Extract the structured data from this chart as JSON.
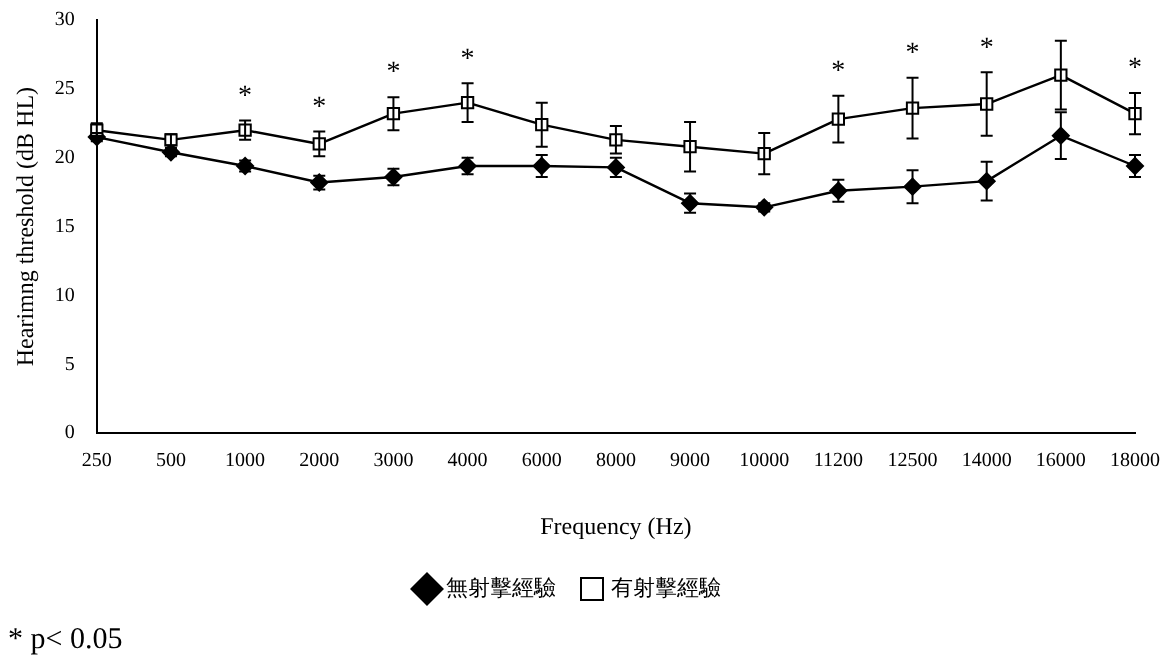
{
  "chart_data": {
    "type": "line",
    "xlabel": "Frequency (Hz)",
    "ylabel": "Hearimng threshold (dB HL)",
    "categories": [
      "250",
      "500",
      "1000",
      "2000",
      "3000",
      "4000",
      "6000",
      "8000",
      "9000",
      "10000",
      "11200",
      "12500",
      "14000",
      "16000",
      "18000"
    ],
    "series": [
      {
        "name": "無射擊經驗",
        "color": "#000000",
        "marker": "diamond",
        "values": [
          21.5,
          20.4,
          19.4,
          18.2,
          18.6,
          19.4,
          19.4,
          19.3,
          16.7,
          16.4,
          17.6,
          17.9,
          18.3,
          21.6,
          19.4
        ],
        "errors": [
          0.3,
          0.3,
          0.4,
          0.5,
          0.6,
          0.6,
          0.8,
          0.7,
          0.7,
          0.3,
          0.8,
          1.2,
          1.4,
          1.7,
          0.8
        ]
      },
      {
        "name": "有射擊經驗",
        "color": "#000000",
        "marker": "square",
        "values": [
          22.0,
          21.3,
          22.0,
          21.0,
          23.2,
          24.0,
          22.4,
          21.3,
          20.8,
          20.3,
          22.8,
          23.6,
          23.9,
          26.0,
          23.2
        ],
        "errors": [
          0.5,
          0.4,
          0.7,
          0.9,
          1.2,
          1.4,
          1.6,
          1.0,
          1.8,
          1.5,
          1.7,
          2.2,
          2.3,
          2.5,
          1.5
        ]
      }
    ],
    "ylim": [
      0,
      30
    ],
    "yticks": [
      0,
      5,
      10,
      15,
      20,
      25,
      30
    ],
    "grid": false,
    "legend": "bottom",
    "annotations": [
      {
        "text": "*",
        "x": "1000",
        "y": 22.0
      },
      {
        "text": "*",
        "x": "2000",
        "y": 21.0
      },
      {
        "text": "*",
        "x": "3000",
        "y": 23.2
      },
      {
        "text": "*",
        "x": "4000",
        "y": 24.0
      },
      {
        "text": "*",
        "x": "11200",
        "y": 22.8
      },
      {
        "text": "*",
        "x": "12500",
        "y": 23.6
      },
      {
        "text": "*",
        "x": "14000",
        "y": 23.9
      },
      {
        "text": "*",
        "x": "18000",
        "y": 23.2
      },
      "* p< 0.05"
    ]
  }
}
